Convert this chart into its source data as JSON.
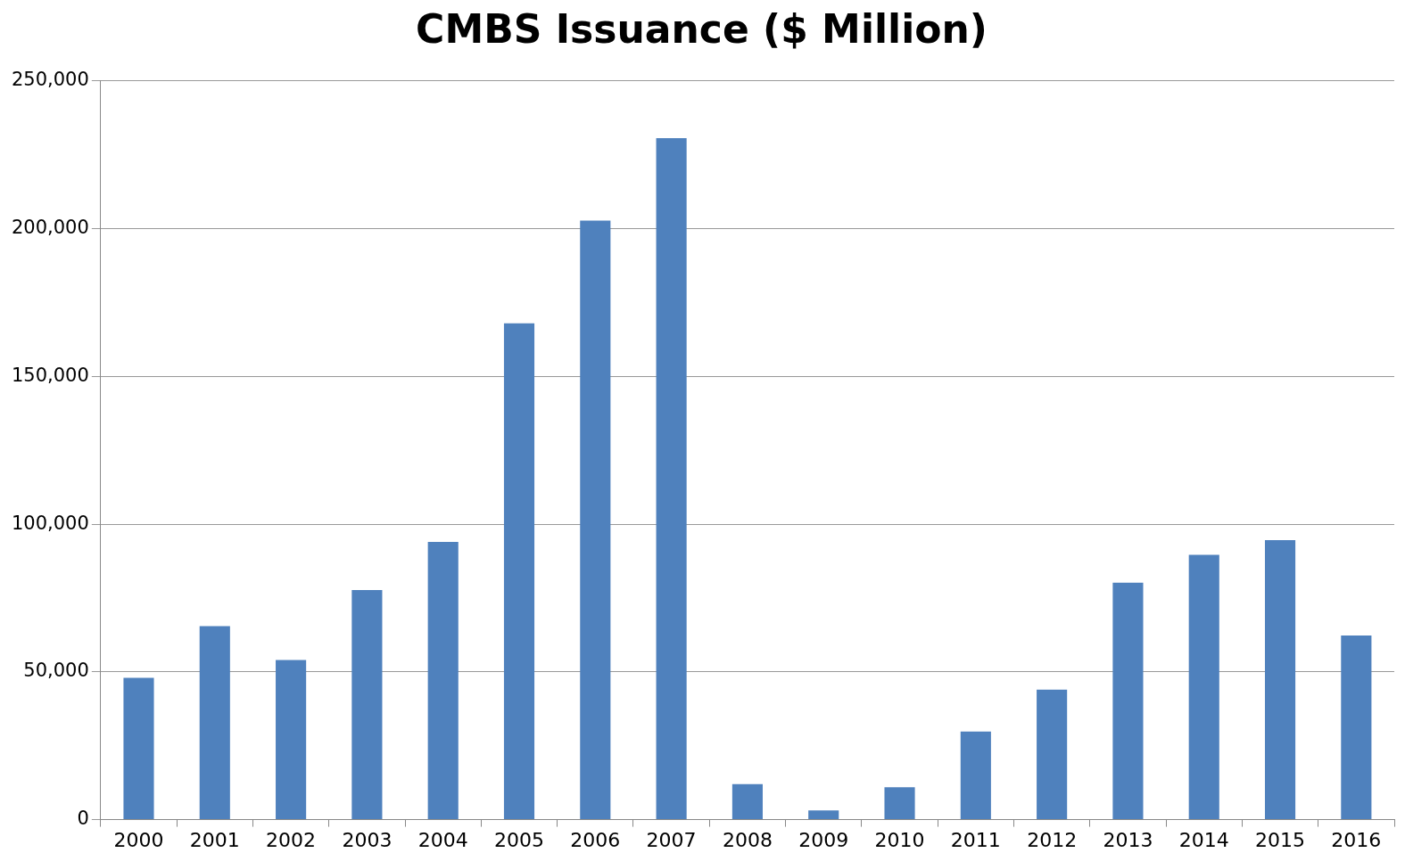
{
  "chart_data": {
    "type": "bar",
    "title": "CMBS Issuance ($ Million)",
    "categories": [
      "2000",
      "2001",
      "2002",
      "2003",
      "2004",
      "2005",
      "2006",
      "2007",
      "2008",
      "2009",
      "2010",
      "2011",
      "2012",
      "2013",
      "2014",
      "2015",
      "2016"
    ],
    "values": [
      48000,
      65500,
      54000,
      77700,
      94000,
      168000,
      202700,
      230600,
      12000,
      3100,
      11000,
      29800,
      44000,
      80200,
      89600,
      94600,
      62300
    ],
    "color": "#4f81bd",
    "ylim": [
      0,
      250000
    ],
    "yticks": [
      {
        "value": 0,
        "label": "0"
      },
      {
        "value": 50000,
        "label": "50,000"
      },
      {
        "value": 100000,
        "label": "100,000"
      },
      {
        "value": 150000,
        "label": "150,000"
      },
      {
        "value": 200000,
        "label": "200,000"
      },
      {
        "value": 250000,
        "label": "250,000"
      }
    ],
    "grid": "y",
    "legend": false
  }
}
